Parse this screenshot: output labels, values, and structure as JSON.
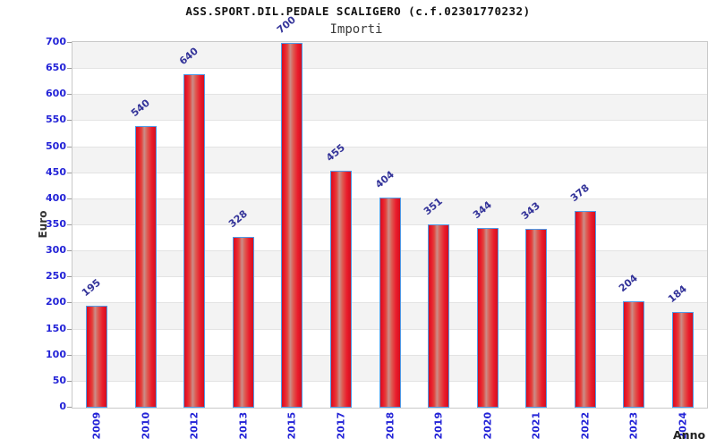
{
  "title": "ASS.SPORT.DIL.PEDALE SCALIGERO (c.f.02301770232)",
  "subtitle": "Importi",
  "chart_data": {
    "type": "bar",
    "title": "ASS.SPORT.DIL.PEDALE SCALIGERO (c.f.02301770232)",
    "subtitle": "Importi",
    "categories": [
      "2009",
      "2010",
      "2012",
      "2013",
      "2015",
      "2017",
      "2018",
      "2019",
      "2020",
      "2021",
      "2022",
      "2023",
      "2024"
    ],
    "values": [
      195,
      540,
      640,
      328,
      700,
      455,
      404,
      351,
      344,
      343,
      378,
      204,
      184
    ],
    "xlabel": "Anno",
    "ylabel": "Euro",
    "ylim": [
      0,
      700
    ],
    "ytick_step": 50,
    "yticks": [
      0,
      50,
      100,
      150,
      200,
      250,
      300,
      350,
      400,
      450,
      500,
      550,
      600,
      650,
      700
    ],
    "grid": true,
    "background_bands": "alternating gray/white every 50 starting gray at 50-100",
    "legend_position": "none",
    "colors": {
      "bar_fill": "#ea1c2c",
      "bar_highlight": "#cb8d88",
      "bar_border": "#4f9be8",
      "tick_label": "#2323d7",
      "value_label": "#333399",
      "band": "#f3f3f3",
      "gridline": "#e3e3e3",
      "plot_border": "#c9c9c9",
      "title_text": "#111111"
    }
  }
}
